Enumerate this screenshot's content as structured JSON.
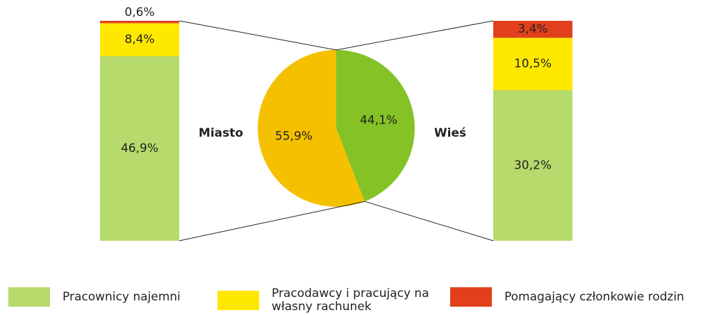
{
  "chart_data": {
    "type": "pie",
    "categories": [
      "Miasto",
      "Wieś"
    ],
    "values": [
      55.9,
      44.1
    ],
    "value_labels": [
      "55,9%",
      "44,1%"
    ],
    "colors": [
      "#f5c000",
      "#84c225"
    ],
    "series": [
      {
        "name": "Pracownicy najemni",
        "color": "#b6da6c",
        "values": [
          46.9,
          30.2
        ],
        "value_labels": [
          "46,9%",
          "30,2%"
        ]
      },
      {
        "name": "Pracodawcy i pracujący na własny rachunek",
        "color": "#ffe800",
        "values": [
          8.4,
          10.5
        ],
        "value_labels": [
          "8,4%",
          "10,5%"
        ]
      },
      {
        "name": "Pomagający członkowie rodzin",
        "color": "#e2401c",
        "values": [
          0.6,
          3.4
        ],
        "value_labels": [
          "0,6%",
          "3,4%"
        ]
      }
    ]
  }
}
